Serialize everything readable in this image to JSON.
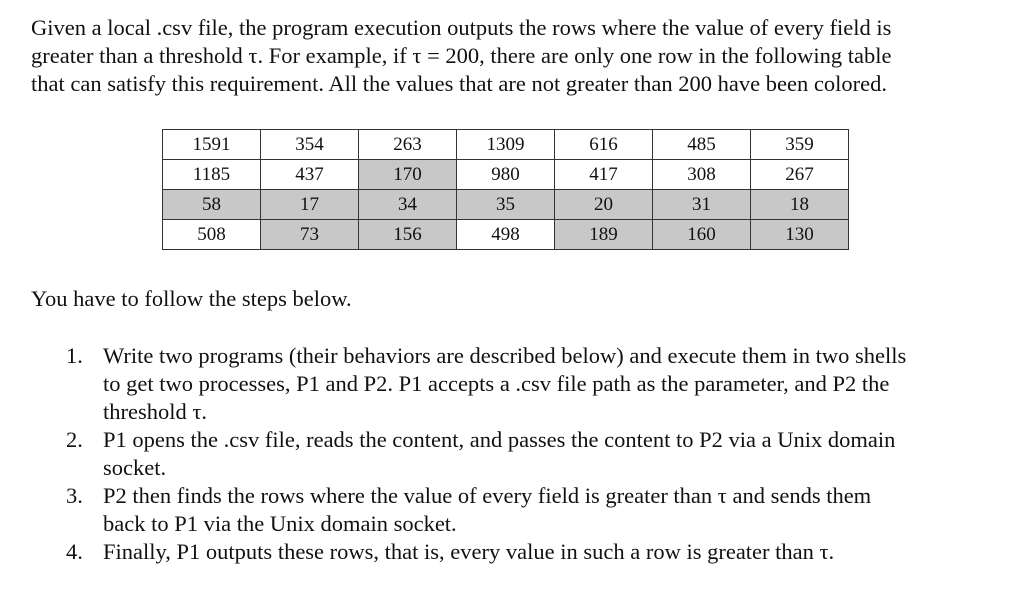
{
  "intro": {
    "lines": [
      "Given a local .csv file, the program execution outputs the rows where the value of every field is",
      "greater than a threshold τ. For example, if τ = 200, there are only one row in the following table",
      "that can satisfy this requirement. All the values that are not greater than 200 have been colored."
    ]
  },
  "table": {
    "rows": [
      [
        "1591",
        "354",
        "263",
        "1309",
        "616",
        "485",
        "359"
      ],
      [
        "1185",
        "437",
        "170",
        "980",
        "417",
        "308",
        "267"
      ],
      [
        "58",
        "17",
        "34",
        "35",
        "20",
        "31",
        "18"
      ],
      [
        "508",
        "73",
        "156",
        "498",
        "189",
        "160",
        "130"
      ]
    ],
    "shade_color": "#c8c8c8"
  },
  "steps_lead": "You have to follow the steps below.",
  "steps": [
    {
      "num": "1.",
      "lines": [
        "Write two programs (their behaviors are described below) and execute them in two shells",
        "to get two processes, P1 and P2. P1 accepts a .csv file path as the parameter, and P2 the",
        "threshold τ."
      ]
    },
    {
      "num": "2.",
      "lines": [
        "P1 opens the .csv file, reads the content, and passes the content to P2 via a Unix domain",
        "socket."
      ]
    },
    {
      "num": "3.",
      "lines": [
        "P2 then finds the rows where the value of every field is greater than τ and sends them",
        "back to P1 via the Unix domain socket."
      ]
    },
    {
      "num": "4.",
      "lines": [
        "Finally, P1 outputs these rows, that is, every value in such a row is greater than τ."
      ]
    }
  ]
}
